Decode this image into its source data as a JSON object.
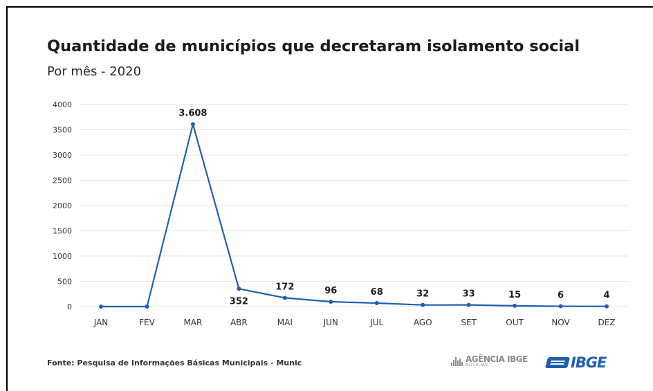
{
  "chart_data": {
    "type": "line",
    "title": "Quantidade de municípios que decretaram isolamento social",
    "subtitle": "Por mês - 2020",
    "categories": [
      "JAN",
      "FEV",
      "MAR",
      "ABR",
      "MAI",
      "JUN",
      "JUL",
      "AGO",
      "SET",
      "OUT",
      "NOV",
      "DEZ"
    ],
    "values": [
      0,
      0,
      3608,
      352,
      172,
      96,
      68,
      32,
      33,
      15,
      6,
      4
    ],
    "data_labels": [
      "",
      "",
      "3.608",
      "352",
      "172",
      "96",
      "68",
      "32",
      "33",
      "15",
      "6",
      "4"
    ],
    "data_label_below": [
      false,
      false,
      false,
      true,
      false,
      false,
      false,
      false,
      false,
      false,
      false,
      false
    ],
    "y_ticks": [
      0,
      500,
      1000,
      1500,
      2000,
      2500,
      3000,
      3500,
      4000
    ],
    "ylim": [
      0,
      4000
    ],
    "grid": true,
    "line_color": "#1f5fb3"
  },
  "footer": {
    "source": "Fonte: Pesquisa de Informações Básicas Municipais - Munic",
    "agencia_line1": "AGÊNCIA IBGE",
    "agencia_line2": "NOTÍCIAS",
    "ibge_wordmark": "IBGE"
  }
}
